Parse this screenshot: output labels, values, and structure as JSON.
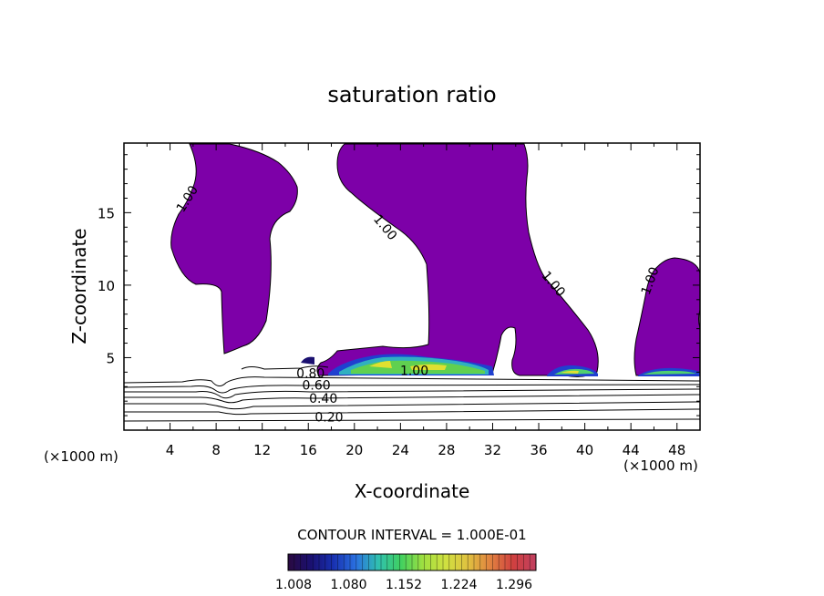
{
  "chart_data": {
    "type": "contour",
    "title": "saturation ratio",
    "xlabel": "X-coordinate",
    "ylabel": "Z-coordinate",
    "x_unit_left": "(×1000 m)",
    "x_unit_right": "(×1000 m)",
    "xlim": [
      0,
      50
    ],
    "ylim": [
      0,
      19.8
    ],
    "x_ticks": [
      4,
      8,
      12,
      16,
      20,
      24,
      28,
      32,
      36,
      40,
      44,
      48
    ],
    "y_ticks": [
      5,
      10,
      15
    ],
    "contour_interval_text": "CONTOUR INTERVAL = 1.000E-01",
    "contour_interval": 0.1,
    "contour_labels": [
      {
        "text": "1.00",
        "x": 5.8,
        "y": 15.8,
        "angle": -58
      },
      {
        "text": "1.00",
        "x": 22.4,
        "y": 13.8,
        "angle": 50
      },
      {
        "text": "1.00",
        "x": 37.0,
        "y": 9.9,
        "angle": 50
      },
      {
        "text": "1.00",
        "x": 46.0,
        "y": 10.2,
        "angle": -70
      },
      {
        "text": "1.00",
        "x": 25.2,
        "y": 3.8,
        "angle": 0
      },
      {
        "text": "0.80",
        "x": 16.2,
        "y": 3.6,
        "angle": 0
      },
      {
        "text": "0.60",
        "x": 16.7,
        "y": 2.8,
        "angle": 0
      },
      {
        "text": "0.40",
        "x": 17.3,
        "y": 1.9,
        "angle": 0
      },
      {
        "text": "0.20",
        "x": 17.8,
        "y": 0.6,
        "angle": 0
      }
    ],
    "colorbar": {
      "labels": [
        "1.008",
        "1.080",
        "1.152",
        "1.224",
        "1.296"
      ],
      "colors": [
        "#2a0a40",
        "#1a1070",
        "#1830b0",
        "#2a70e0",
        "#30c0b0",
        "#40d060",
        "#a0e040",
        "#d0e040",
        "#e0c040",
        "#e08040",
        "#d04040",
        "#c04060"
      ]
    },
    "fill_color": "#7d00a8"
  }
}
